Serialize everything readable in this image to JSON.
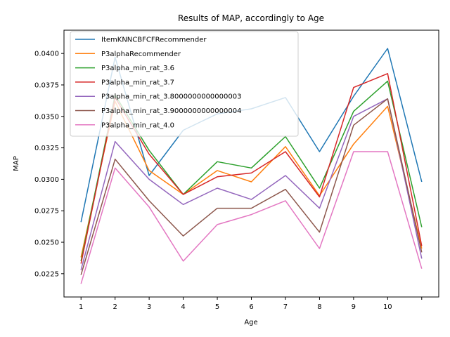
{
  "chart_data": {
    "type": "line",
    "title": "Results of MAP, accordingly to Age",
    "xlabel": "Age",
    "ylabel": "MAP",
    "x": [
      1,
      2,
      3,
      4,
      5,
      6,
      7,
      8,
      9,
      10,
      11
    ],
    "x_tick_labels": [
      "1",
      "2",
      "3",
      "4",
      "5",
      "6",
      "7",
      "8",
      "9",
      "10",
      ""
    ],
    "xlim": [
      0.5,
      11.5
    ],
    "ylim": [
      0.02065,
      0.04185
    ],
    "y_ticks": [
      0.0225,
      0.025,
      0.0275,
      0.03,
      0.0325,
      0.035,
      0.0375,
      0.04
    ],
    "y_tick_labels": [
      "0.0225",
      "0.0250",
      "0.0275",
      "0.0300",
      "0.0325",
      "0.0350",
      "0.0375",
      "0.0400"
    ],
    "grid": false,
    "legend_position": "top-left",
    "series": [
      {
        "name": "ItemKNNCBFCFRecommender",
        "color": "#1f77b4",
        "values": [
          0.0266,
          0.0397,
          0.0303,
          0.0339,
          0.0352,
          0.0356,
          0.0365,
          0.0322,
          0.0366,
          0.0404,
          0.0298
        ]
      },
      {
        "name": "P3alphaRecommender",
        "color": "#ff7f0e",
        "values": [
          0.0238,
          0.0362,
          0.0307,
          0.0288,
          0.0307,
          0.0298,
          0.0326,
          0.0287,
          0.0328,
          0.0358,
          0.0245
        ]
      },
      {
        "name": "P3alpha_min_rat_3.6",
        "color": "#2ca02c",
        "values": [
          0.0235,
          0.0367,
          0.0323,
          0.0288,
          0.0314,
          0.0309,
          0.0334,
          0.0293,
          0.0354,
          0.0378,
          0.0262
        ]
      },
      {
        "name": "P3alpha_min_rat_3.7",
        "color": "#d62728",
        "values": [
          0.0233,
          0.0365,
          0.032,
          0.0288,
          0.0302,
          0.0305,
          0.0322,
          0.0286,
          0.0373,
          0.0384,
          0.0247
        ]
      },
      {
        "name": "P3alpha_min_rat_3.8000000000000003",
        "color": "#9467bd",
        "values": [
          0.0228,
          0.033,
          0.03,
          0.028,
          0.0293,
          0.0284,
          0.0303,
          0.0277,
          0.035,
          0.0364,
          0.0237
        ]
      },
      {
        "name": "P3alpha_min_rat_3.9000000000000004",
        "color": "#8c564b",
        "values": [
          0.0224,
          0.0316,
          0.0283,
          0.0255,
          0.0277,
          0.0277,
          0.0292,
          0.0258,
          0.0343,
          0.0364,
          0.0242
        ]
      },
      {
        "name": "P3alpha_min_rat_4.0",
        "color": "#e377c2",
        "values": [
          0.0217,
          0.0309,
          0.0278,
          0.0235,
          0.0264,
          0.0272,
          0.0283,
          0.0245,
          0.0322,
          0.0322,
          0.0229
        ]
      }
    ]
  }
}
